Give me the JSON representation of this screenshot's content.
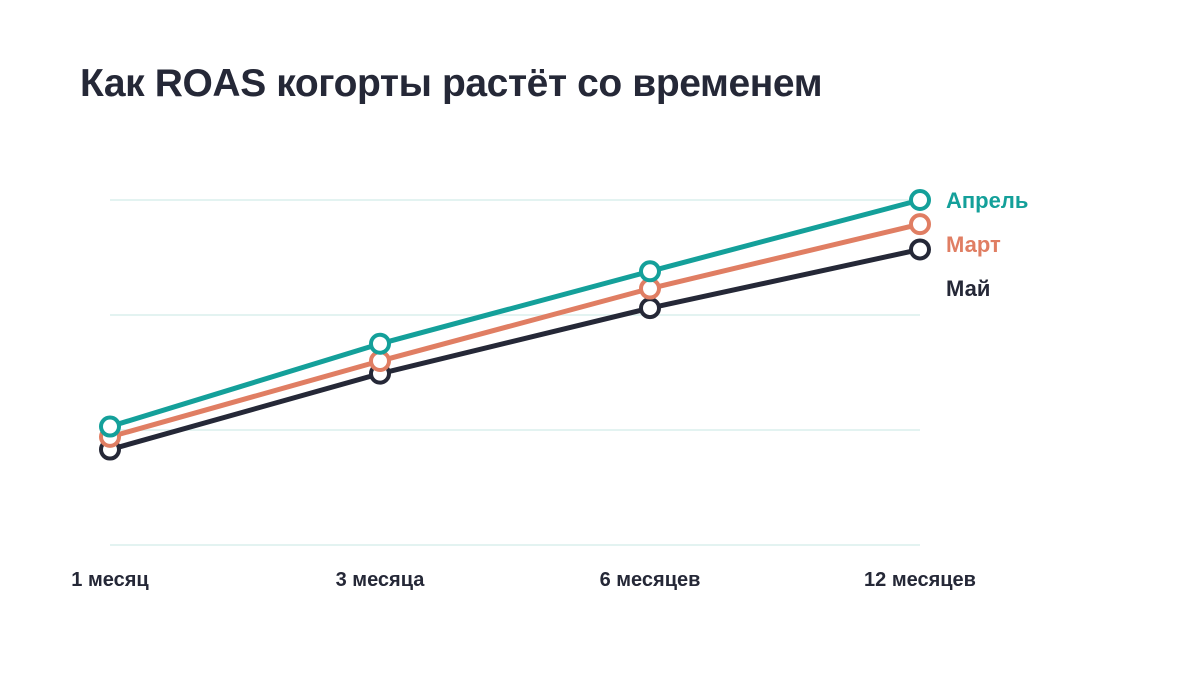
{
  "title": "Как ROAS когорты растёт со временем",
  "colors": {
    "grid": "#e3f3f1",
    "text": "#252837"
  },
  "chart_data": {
    "type": "line",
    "title": "Как ROAS когорты растёт со временем",
    "xlabel": "",
    "ylabel": "",
    "categories": [
      "1 месяц",
      "3 месяца",
      "6 месяцев",
      "12 месяцев"
    ],
    "ylim": [
      0,
      3
    ],
    "grid": true,
    "legend": "right, at line ends",
    "series": [
      {
        "name": "Май",
        "color": "#252837",
        "values": [
          0.83,
          1.49,
          2.06,
          2.57
        ]
      },
      {
        "name": "Март",
        "color": "#e07e63",
        "values": [
          0.94,
          1.6,
          2.23,
          2.79
        ]
      },
      {
        "name": "Апрель",
        "color": "#14a09a",
        "values": [
          1.03,
          1.75,
          2.38,
          3.0
        ]
      }
    ]
  }
}
